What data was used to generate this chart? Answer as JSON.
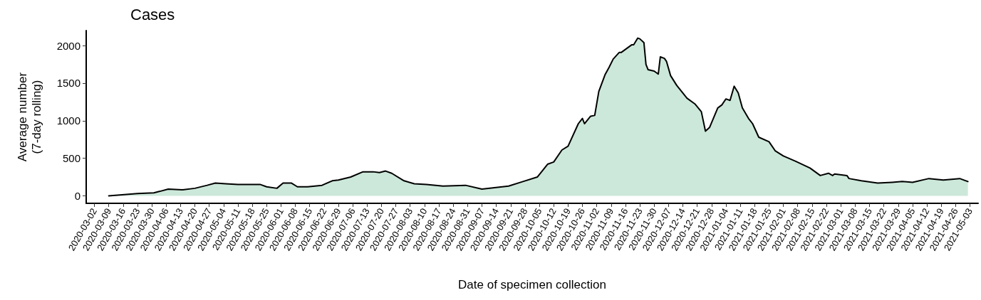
{
  "chart_data": {
    "type": "area",
    "title": "Cases",
    "xlabel": "Date of specimen collection",
    "ylabel": "Average number\n(7-day rolling)",
    "x": [
      "2020-03-09",
      "2020-03-23",
      "2020-03-31",
      "2020-04-03",
      "2020-04-07",
      "2020-04-14",
      "2020-04-20",
      "2020-04-26",
      "2020-04-30",
      "2020-05-05",
      "2020-05-11",
      "2020-05-22",
      "2020-05-25",
      "2020-05-30",
      "2020-06-02",
      "2020-06-06",
      "2020-06-09",
      "2020-06-14",
      "2020-06-21",
      "2020-06-26",
      "2020-06-29",
      "2020-07-05",
      "2020-07-11",
      "2020-07-16",
      "2020-07-19",
      "2020-07-22",
      "2020-07-25",
      "2020-07-31",
      "2020-08-05",
      "2020-08-11",
      "2020-08-19",
      "2020-08-30",
      "2020-09-07",
      "2020-09-20",
      "2020-09-27",
      "2020-10-04",
      "2020-10-09",
      "2020-10-12",
      "2020-10-16",
      "2020-10-19",
      "2020-10-24",
      "2020-10-26",
      "2020-10-27",
      "2020-10-30",
      "2020-11-01",
      "2020-11-03",
      "2020-11-06",
      "2020-11-08",
      "2020-11-10",
      "2020-11-13",
      "2020-11-14",
      "2020-11-19",
      "2020-11-20",
      "2020-11-22",
      "2020-11-23",
      "2020-11-25",
      "2020-11-26",
      "2020-11-27",
      "2020-11-30",
      "2020-12-02",
      "2020-12-03",
      "2020-12-05",
      "2020-12-06",
      "2020-12-08",
      "2020-12-11",
      "2020-12-16",
      "2020-12-20",
      "2020-12-23",
      "2020-12-25",
      "2020-12-27",
      "2020-12-31",
      "2021-01-02",
      "2021-01-04",
      "2021-01-06",
      "2021-01-08",
      "2021-01-10",
      "2021-01-12",
      "2021-01-15",
      "2021-01-17",
      "2021-01-20",
      "2021-01-25",
      "2021-01-28",
      "2021-02-01",
      "2021-02-07",
      "2021-02-14",
      "2021-02-19",
      "2021-02-23",
      "2021-02-25",
      "2021-02-26",
      "2021-03-04",
      "2021-03-05",
      "2021-03-11",
      "2021-03-19",
      "2021-03-26",
      "2021-03-31",
      "2021-04-05",
      "2021-04-13",
      "2021-04-20",
      "2021-04-28",
      "2021-05-02"
    ],
    "series": [
      {
        "color": "#cce8da",
        "values": [
          0,
          30,
          40,
          60,
          90,
          80,
          100,
          140,
          170,
          160,
          150,
          150,
          120,
          100,
          170,
          170,
          120,
          120,
          140,
          200,
          210,
          250,
          320,
          320,
          310,
          330,
          300,
          200,
          160,
          150,
          130,
          140,
          90,
          130,
          190,
          250,
          420,
          450,
          610,
          660,
          960,
          1030,
          960,
          1060,
          1070,
          1390,
          1610,
          1710,
          1820,
          1910,
          1910,
          2010,
          2010,
          2100,
          2090,
          2040,
          1750,
          1680,
          1660,
          1620,
          1850,
          1830,
          1790,
          1600,
          1470,
          1300,
          1220,
          1120,
          860,
          910,
          1170,
          1210,
          1290,
          1270,
          1460,
          1370,
          1170,
          1030,
          960,
          780,
          720,
          600,
          530,
          460,
          370,
          270,
          300,
          270,
          290,
          270,
          230,
          200,
          170,
          180,
          190,
          180,
          230,
          210,
          230,
          190
        ]
      }
    ],
    "xlim": [
      "2020-02-27",
      "2021-05-07"
    ],
    "xticks": [
      "2020-03-02",
      "2020-03-09",
      "2020-03-16",
      "2020-03-23",
      "2020-03-30",
      "2020-04-06",
      "2020-04-13",
      "2020-04-20",
      "2020-04-27",
      "2020-05-04",
      "2020-05-11",
      "2020-05-18",
      "2020-05-25",
      "2020-06-01",
      "2020-06-08",
      "2020-06-15",
      "2020-06-22",
      "2020-06-29",
      "2020-07-06",
      "2020-07-13",
      "2020-07-20",
      "2020-07-27",
      "2020-08-03",
      "2020-08-10",
      "2020-08-17",
      "2020-08-24",
      "2020-08-31",
      "2020-09-07",
      "2020-09-14",
      "2020-09-21",
      "2020-09-28",
      "2020-10-05",
      "2020-10-12",
      "2020-10-19",
      "2020-10-26",
      "2020-11-02",
      "2020-11-09",
      "2020-11-16",
      "2020-11-23",
      "2020-11-30",
      "2020-12-07",
      "2020-12-14",
      "2020-12-21",
      "2020-12-28",
      "2021-01-04",
      "2021-01-11",
      "2021-01-18",
      "2021-01-25",
      "2021-02-01",
      "2021-02-08",
      "2021-02-15",
      "2021-02-22",
      "2021-03-01",
      "2021-03-08",
      "2021-03-15",
      "2021-03-22",
      "2021-03-29",
      "2021-04-05",
      "2021-04-12",
      "2021-04-19",
      "2021-04-26",
      "2021-05-03"
    ],
    "ylim": [
      -100,
      2200
    ],
    "yticks": [
      0,
      500,
      1000,
      1500,
      2000
    ],
    "grid": false,
    "marker": "none",
    "line_style": "solid"
  }
}
